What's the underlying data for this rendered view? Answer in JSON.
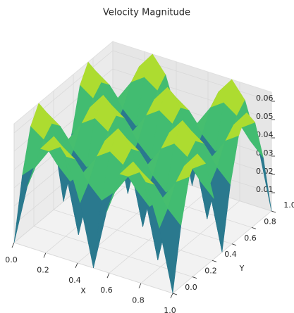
{
  "chart_data": {
    "type": "surface3d",
    "title": "Velocity Magnitude",
    "xlabel": "X",
    "ylabel": "Y",
    "x": [
      0,
      0.083,
      0.167,
      0.25,
      0.333,
      0.417,
      0.5,
      0.583,
      0.667,
      0.75,
      0.833,
      0.917,
      1
    ],
    "y": [
      0,
      0.083,
      0.167,
      0.25,
      0.333,
      0.417,
      0.5,
      0.583,
      0.667,
      0.75,
      0.833,
      0.917,
      1
    ],
    "z": [
      [
        0,
        0.033,
        0.056,
        0.065,
        0.056,
        0.033,
        0,
        0.033,
        0.056,
        0.065,
        0.056,
        0.033,
        0
      ],
      [
        0.033,
        0.04,
        0.051,
        0.056,
        0.051,
        0.04,
        0.033,
        0.04,
        0.051,
        0.056,
        0.051,
        0.04,
        0.033
      ],
      [
        0.056,
        0.051,
        0.04,
        0.033,
        0.04,
        0.051,
        0.056,
        0.051,
        0.04,
        0.033,
        0.04,
        0.051,
        0.056
      ],
      [
        0.065,
        0.056,
        0.033,
        0,
        0.033,
        0.056,
        0.065,
        0.056,
        0.033,
        0,
        0.033,
        0.056,
        0.065
      ],
      [
        0.056,
        0.051,
        0.04,
        0.033,
        0.04,
        0.051,
        0.056,
        0.051,
        0.04,
        0.033,
        0.04,
        0.051,
        0.056
      ],
      [
        0.033,
        0.04,
        0.051,
        0.056,
        0.051,
        0.04,
        0.033,
        0.04,
        0.051,
        0.056,
        0.051,
        0.04,
        0.033
      ],
      [
        0,
        0.033,
        0.056,
        0.065,
        0.056,
        0.033,
        0,
        0.033,
        0.056,
        0.065,
        0.056,
        0.033,
        0
      ],
      [
        0.033,
        0.04,
        0.051,
        0.056,
        0.051,
        0.04,
        0.033,
        0.04,
        0.051,
        0.056,
        0.051,
        0.04,
        0.033
      ],
      [
        0.056,
        0.051,
        0.04,
        0.033,
        0.04,
        0.051,
        0.056,
        0.051,
        0.04,
        0.033,
        0.04,
        0.051,
        0.056
      ],
      [
        0.065,
        0.056,
        0.033,
        0,
        0.033,
        0.056,
        0.065,
        0.056,
        0.033,
        0,
        0.033,
        0.056,
        0.065
      ],
      [
        0.056,
        0.051,
        0.04,
        0.033,
        0.04,
        0.051,
        0.056,
        0.051,
        0.04,
        0.033,
        0.04,
        0.051,
        0.056
      ],
      [
        0.033,
        0.04,
        0.051,
        0.056,
        0.051,
        0.04,
        0.033,
        0.04,
        0.051,
        0.056,
        0.051,
        0.04,
        0.033
      ],
      [
        0,
        0.033,
        0.056,
        0.065,
        0.056,
        0.033,
        0,
        0.033,
        0.056,
        0.065,
        0.056,
        0.033,
        0
      ]
    ],
    "colormap": "viridis",
    "xlim": [
      0,
      1
    ],
    "ylim": [
      0,
      1
    ],
    "zlim": [
      0,
      0.065
    ],
    "xticks": [
      {
        "value": 0,
        "label": "0.0"
      },
      0.2,
      0.4,
      0.6,
      0.8,
      {
        "value": 1,
        "label": "1.0"
      }
    ],
    "yticks": [
      {
        "value": 0,
        "label": "0.0"
      },
      0.2,
      0.4,
      0.6,
      0.8,
      {
        "value": 1,
        "label": "1.0"
      }
    ],
    "zticks": [
      0.01,
      0.02,
      0.03,
      0.04,
      0.05,
      0.06
    ],
    "grid": true
  }
}
